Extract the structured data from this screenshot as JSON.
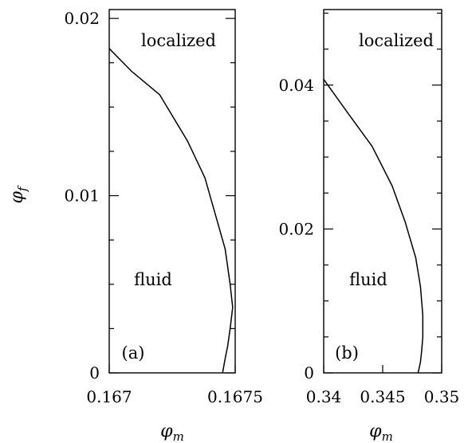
{
  "chart_data": [
    {
      "type": "line",
      "panel_label": "(a)",
      "xlim": [
        0.167,
        0.1675
      ],
      "ylim": [
        0,
        0.0205
      ],
      "xticks": [
        0.167,
        0.1675
      ],
      "xtick_labels": [
        "0.167",
        "0.1675"
      ],
      "yticks": [
        0,
        0.01,
        0.02
      ],
      "ytick_labels": [
        "0",
        "0.01",
        "0.02"
      ],
      "xlabel": "φ_m",
      "ylabel": "φ_f",
      "region_labels": {
        "upper": "localized",
        "lower": "fluid"
      },
      "grid": false,
      "series": [
        {
          "x": [
            0.167,
            0.16709,
            0.1672,
            0.16731,
            0.16738,
            0.16742,
            0.16746,
            0.16748,
            0.16749,
            0.16748,
            0.16747,
            0.16746,
            0.16745
          ],
          "y": [
            0.0183,
            0.017,
            0.0157,
            0.0131,
            0.011,
            0.009,
            0.007,
            0.005,
            0.0037,
            0.0025,
            0.0015,
            0.0008,
            0.0
          ]
        }
      ]
    },
    {
      "type": "line",
      "panel_label": "(b)",
      "xlim": [
        0.34,
        0.35
      ],
      "ylim": [
        0,
        0.0505
      ],
      "xticks": [
        0.34,
        0.345,
        0.35
      ],
      "xtick_labels": [
        "0.34",
        "0.345",
        "0.35"
      ],
      "yticks": [
        0,
        0.02,
        0.04
      ],
      "ytick_labels": [
        "0",
        "0.02",
        "0.04"
      ],
      "xlabel": "φ_m",
      "ylabel": "",
      "region_labels": {
        "upper": "localized",
        "lower": "fluid"
      },
      "grid": false,
      "series": [
        {
          "x": [
            0.34,
            0.3421,
            0.3441,
            0.3458,
            0.3469,
            0.3478,
            0.3482,
            0.3484,
            0.3484,
            0.3483,
            0.3482,
            0.348
          ],
          "y": [
            0.0408,
            0.036,
            0.0315,
            0.026,
            0.021,
            0.016,
            0.012,
            0.008,
            0.005,
            0.003,
            0.0015,
            0.0
          ]
        }
      ]
    }
  ]
}
